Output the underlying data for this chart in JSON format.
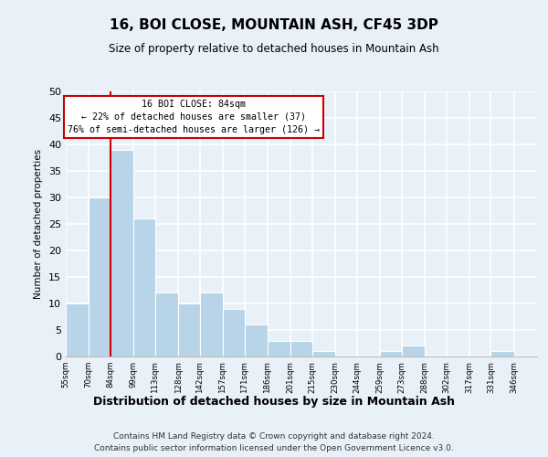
{
  "title": "16, BOI CLOSE, MOUNTAIN ASH, CF45 3DP",
  "subtitle": "Size of property relative to detached houses in Mountain Ash",
  "xlabel": "Distribution of detached houses by size in Mountain Ash",
  "ylabel": "Number of detached properties",
  "footer_line1": "Contains HM Land Registry data © Crown copyright and database right 2024.",
  "footer_line2": "Contains public sector information licensed under the Open Government Licence v3.0.",
  "bar_edges": [
    55,
    70,
    84,
    99,
    113,
    128,
    142,
    157,
    171,
    186,
    201,
    215,
    230,
    244,
    259,
    273,
    288,
    302,
    317,
    331,
    346
  ],
  "bar_heights": [
    10,
    30,
    39,
    26,
    12,
    10,
    12,
    9,
    6,
    3,
    3,
    1,
    0,
    0,
    1,
    2,
    0,
    0,
    0,
    1,
    0
  ],
  "bar_color": "#b8d4e8",
  "bar_edge_color": "#ffffff",
  "vline_x": 84,
  "vline_color": "#cc0000",
  "annotation_title": "16 BOI CLOSE: 84sqm",
  "annotation_line1": "← 22% of detached houses are smaller (37)",
  "annotation_line2": "76% of semi-detached houses are larger (126) →",
  "annotation_box_facecolor": "#ffffff",
  "annotation_box_edgecolor": "#cc0000",
  "ylim": [
    0,
    50
  ],
  "xlim": [
    55,
    361
  ],
  "tick_labels": [
    "55sqm",
    "70sqm",
    "84sqm",
    "99sqm",
    "113sqm",
    "128sqm",
    "142sqm",
    "157sqm",
    "171sqm",
    "186sqm",
    "201sqm",
    "215sqm",
    "230sqm",
    "244sqm",
    "259sqm",
    "273sqm",
    "288sqm",
    "302sqm",
    "317sqm",
    "331sqm",
    "346sqm"
  ],
  "tick_positions": [
    55,
    70,
    84,
    99,
    113,
    128,
    142,
    157,
    171,
    186,
    201,
    215,
    230,
    244,
    259,
    273,
    288,
    302,
    317,
    331,
    346
  ],
  "bg_color": "#e8f0f8",
  "grid_color": "#ffffff",
  "yticks": [
    0,
    5,
    10,
    15,
    20,
    25,
    30,
    35,
    40,
    45,
    50
  ]
}
